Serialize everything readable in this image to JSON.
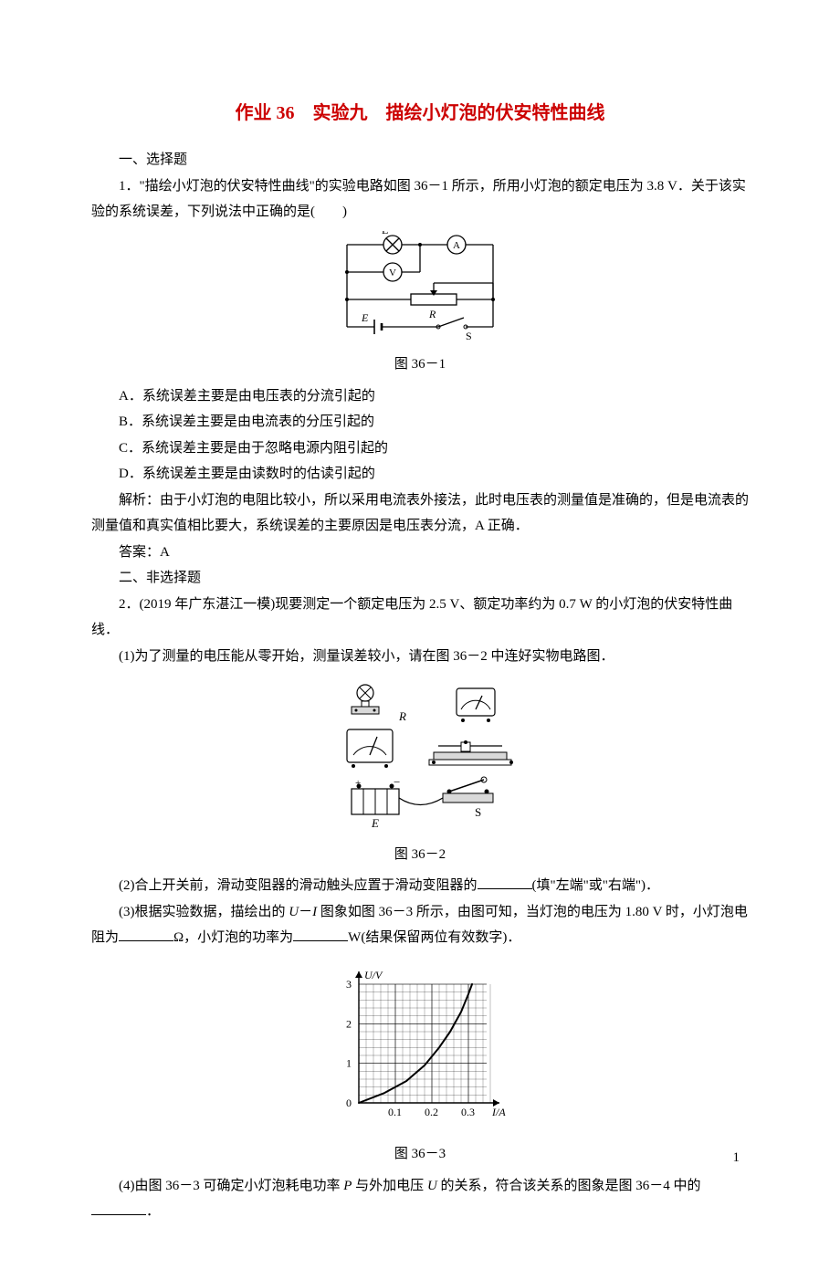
{
  "title": "作业 36　实验九　描绘小灯泡的伏安特性曲线",
  "sections": {
    "one_label": "一、选择题",
    "two_label": "二、非选择题"
  },
  "q1": {
    "stem_a": "1．\"描绘小灯泡的伏安特性曲线\"的实验电路如图 36－1 所示，所用小灯泡的额定电压为 3.8 V．关于该实验的系统误差，下列说法中正确的是(　　)",
    "fig_label": "图 36－1",
    "A": "A．系统误差主要是由电压表的分流引起的",
    "B": "B．系统误差主要是由电流表的分压引起的",
    "C": "C．系统误差主要是由于忽略电源内阻引起的",
    "D": "D．系统误差主要是由读数时的估读引起的",
    "explain": "解析：由于小灯泡的电阻比较小，所以采用电流表外接法，此时电压表的测量值是准确的，但是电流表的测量值和真实值相比要大，系统误差的主要原因是电压表分流，A 正确．",
    "answer": "答案：A",
    "circuit": {
      "labels": {
        "L": "L",
        "V": "V",
        "A": "A",
        "R": "R",
        "E": "E",
        "S": "S"
      },
      "stroke": "#000000",
      "stroke_width": 1.3
    }
  },
  "q2": {
    "stem": "2．(2019 年广东湛江一模)现要测定一个额定电压为 2.5 V、额定功率约为 0.7 W 的小灯泡的伏安特性曲线．",
    "p1": "(1)为了测量的电压能从零开始，测量误差较小，请在图 36－2 中连好实物电路图．",
    "fig2_label": "图 36－2",
    "p2_a": "(2)合上开关前，滑动变阻器的滑动触头应置于滑动变阻器的",
    "p2_b": "(填\"左端\"或\"右端\")．",
    "p3_a": "(3)根据实验数据，描绘出的 ",
    "p3_ui": "U",
    "p3_dash": "－",
    "p3_i": "I",
    "p3_b": " 图象如图 36－3 所示，由图可知，当灯泡的电压为 1.80 V 时，小灯泡电阻为",
    "p3_c": "Ω，小灯泡的功率为",
    "p3_d": "W(结果保留两位有效数字)．",
    "fig3_label": "图 36－3",
    "p4_a": "(4)由图 36－3 可确定小灯泡耗电功率 ",
    "p4_p": "P",
    "p4_b": " 与外加电压 ",
    "p4_u": "U",
    "p4_c": " 的关系，符合该关系的图象是图 36－4 中的",
    "p4_d": "．",
    "physical": {
      "labels": {
        "R": "R",
        "E": "E",
        "S": "S"
      },
      "stroke": "#000000",
      "fill": "#d9d9d9"
    },
    "chart": {
      "type": "line",
      "xlabel": "I/A",
      "ylabel": "U/V",
      "xlim": [
        0,
        0.35
      ],
      "ylim": [
        0,
        3
      ],
      "xticks": [
        0,
        0.1,
        0.2,
        0.3
      ],
      "yticks": [
        0,
        1,
        2,
        3
      ],
      "minor_divisions": 5,
      "curve_points": [
        [
          0,
          0
        ],
        [
          0.07,
          0.25
        ],
        [
          0.13,
          0.55
        ],
        [
          0.18,
          0.95
        ],
        [
          0.22,
          1.4
        ],
        [
          0.25,
          1.8
        ],
        [
          0.28,
          2.3
        ],
        [
          0.3,
          2.75
        ],
        [
          0.31,
          3.0
        ]
      ],
      "background_color": "#ffffff",
      "grid_color": "#000000",
      "grid_width_minor": 0.25,
      "grid_width_major": 0.6,
      "curve_color": "#000000",
      "curve_width": 2.0,
      "axis_width": 1.4,
      "font_size": 12
    }
  },
  "page_number": "1"
}
